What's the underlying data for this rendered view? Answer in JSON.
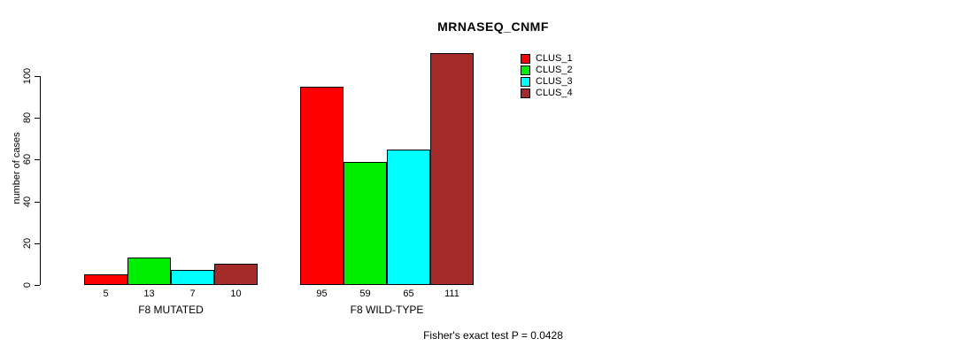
{
  "chart_data": {
    "type": "bar",
    "title": "MRNASEQ_CNMF",
    "xlabel": "",
    "ylabel": "number of cases",
    "ylim": [
      0,
      111
    ],
    "yticks": [
      0,
      20,
      40,
      60,
      80,
      100
    ],
    "grid": false,
    "legend_position": "top-right",
    "groups": [
      "F8 MUTATED",
      "F8 WILD-TYPE"
    ],
    "series": [
      {
        "name": "CLUS_1",
        "color": "#FF0000",
        "values": [
          5,
          95
        ]
      },
      {
        "name": "CLUS_2",
        "color": "#00EE00",
        "values": [
          13,
          59
        ]
      },
      {
        "name": "CLUS_3",
        "color": "#00FFFF",
        "values": [
          7,
          65
        ]
      },
      {
        "name": "CLUS_4",
        "color": "#A52A2A",
        "values": [
          10,
          111
        ]
      }
    ],
    "bar_value_labels": [
      [
        5,
        13,
        7,
        10
      ],
      [
        95,
        59,
        65,
        111
      ]
    ],
    "annotation": "Fisher's exact test P = 0.0428"
  }
}
